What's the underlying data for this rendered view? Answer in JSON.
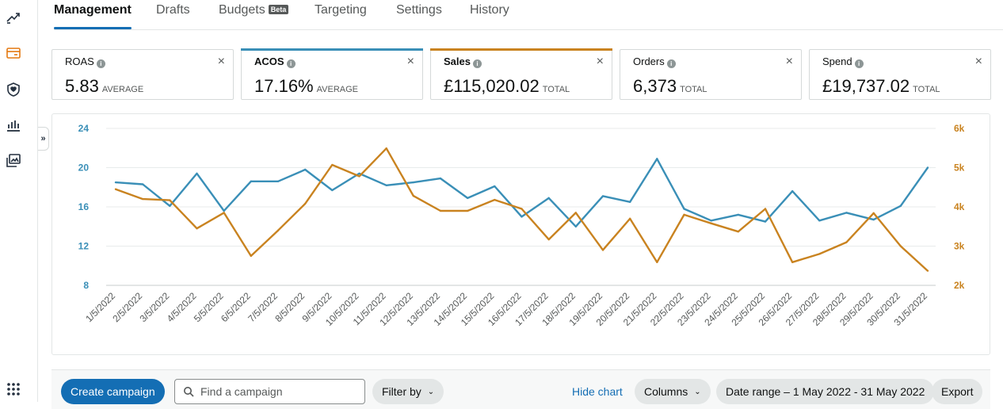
{
  "tabs": [
    {
      "label": "Management",
      "active": true
    },
    {
      "label": "Drafts"
    },
    {
      "label": "Budgets",
      "badge": "Beta"
    },
    {
      "label": "Targeting"
    },
    {
      "label": "Settings"
    },
    {
      "label": "History"
    }
  ],
  "sidebar": {
    "icons": [
      "trend-chart-icon",
      "card-icon",
      "shield-icon",
      "bar-chart-icon",
      "image-gallery-icon"
    ],
    "apps_icon": "apps-grid-icon",
    "collapse_label": "»"
  },
  "metrics": [
    {
      "label": "ROAS",
      "value": "5.83",
      "sub": "AVERAGE",
      "close": "×",
      "accent": ""
    },
    {
      "label": "ACOS",
      "value": "17.16%",
      "sub": "AVERAGE",
      "close": "×",
      "accent": "#3a8fb7"
    },
    {
      "label": "Sales",
      "value": "£115,020.02",
      "sub": "TOTAL",
      "close": "×",
      "accent": "#c98320"
    },
    {
      "label": "Orders",
      "value": "6,373",
      "sub": "TOTAL",
      "close": "×",
      "accent": ""
    },
    {
      "label": "Spend",
      "value": "£19,737.02",
      "sub": "TOTAL",
      "close": "×",
      "accent": ""
    }
  ],
  "chart_data": {
    "type": "line",
    "categories": [
      "1/5/2022",
      "2/5/2022",
      "3/5/2022",
      "4/5/2022",
      "5/5/2022",
      "6/5/2022",
      "7/5/2022",
      "8/5/2022",
      "9/5/2022",
      "10/5/2022",
      "11/5/2022",
      "12/5/2022",
      "13/5/2022",
      "14/5/2022",
      "15/5/2022",
      "16/5/2022",
      "17/5/2022",
      "18/5/2022",
      "19/5/2022",
      "20/5/2022",
      "21/5/2022",
      "22/5/2022",
      "23/5/2022",
      "24/5/2022",
      "25/5/2022",
      "26/5/2022",
      "27/5/2022",
      "28/5/2022",
      "29/5/2022",
      "30/5/2022",
      "31/5/2022"
    ],
    "series": [
      {
        "name": "ACOS",
        "axis": "left",
        "color": "#3a8fb7",
        "values": [
          18.5,
          18.3,
          16.1,
          19.4,
          15.6,
          18.6,
          18.6,
          19.8,
          17.7,
          19.4,
          18.2,
          18.5,
          18.9,
          16.9,
          18.1,
          15.0,
          16.9,
          14.0,
          17.1,
          16.5,
          20.9,
          15.8,
          14.6,
          15.2,
          14.5,
          17.6,
          14.6,
          15.4,
          14.7,
          16.1,
          20.0
        ]
      },
      {
        "name": "Sales",
        "axis": "right",
        "color": "#c98320",
        "values": [
          4450,
          4200,
          4170,
          3450,
          3850,
          2750,
          3400,
          4080,
          5070,
          4780,
          5490,
          4280,
          3900,
          3900,
          4180,
          3950,
          3170,
          3850,
          2900,
          3700,
          2590,
          3800,
          3580,
          3370,
          3950,
          2590,
          2800,
          3100,
          3840,
          3000,
          2370
        ]
      }
    ],
    "left_axis": {
      "ticks": [
        "8",
        "12",
        "16",
        "20",
        "24"
      ],
      "ylim": [
        8,
        24
      ]
    },
    "right_axis": {
      "ticks": [
        "2k",
        "3k",
        "4k",
        "5k",
        "6k"
      ],
      "ylim": [
        2000,
        6000
      ]
    },
    "grid": true
  },
  "toolbar": {
    "create": "Create campaign",
    "search_placeholder": "Find a campaign",
    "filter": "Filter by",
    "hide_chart": "Hide chart",
    "columns": "Columns",
    "date_range": "Date range – 1 May 2022 - 31 May 2022",
    "export": "Export"
  }
}
